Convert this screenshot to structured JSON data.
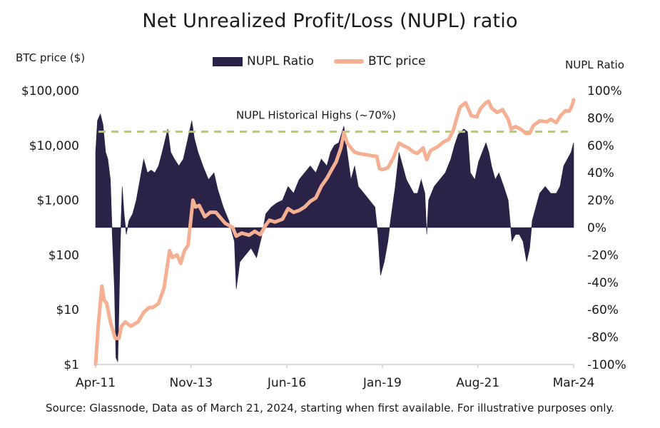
{
  "chart_data": {
    "type": "area+line",
    "title": "Net Unrealized Profit/Loss (NUPL) ratio",
    "legend": {
      "placement": "top-center",
      "entries": [
        {
          "label": "NUPL Ratio",
          "color": "#2b2347",
          "kind": "area"
        },
        {
          "label": "BTC price",
          "color": "#f5b093",
          "kind": "line"
        }
      ]
    },
    "left_axis": {
      "label": "BTC price ($)",
      "scale": "log",
      "range": [
        1,
        100000
      ],
      "ticks": [
        1,
        10,
        100,
        1000,
        10000,
        100000
      ],
      "tick_labels": [
        "$1",
        "$10",
        "$100",
        "$1,000",
        "$10,000",
        "$100,000"
      ]
    },
    "right_axis": {
      "label": "NUPL Ratio",
      "range": [
        -1,
        1
      ],
      "ticks": [
        -1,
        -0.8,
        -0.6,
        -0.4,
        -0.2,
        0,
        0.2,
        0.4,
        0.6,
        0.8,
        1
      ],
      "tick_labels": [
        "-100%",
        "-80%",
        "-60%",
        "-40%",
        "-20%",
        "0%",
        "20%",
        "40%",
        "60%",
        "80%",
        "100%"
      ]
    },
    "x_axis": {
      "range": [
        2011.25,
        2024.17
      ],
      "ticks": [
        2011.25,
        2013.83,
        2016.42,
        2019.0,
        2021.58,
        2024.17
      ],
      "tick_labels": [
        "Apr-11",
        "Nov-13",
        "Jun-16",
        "Jan-19",
        "Aug-21",
        "Mar-24"
      ]
    },
    "reference_line": {
      "value": 0.7,
      "label": "NUPL Historical Highs (~70%)",
      "color": "#b5cc6a",
      "style": "dashed"
    },
    "series": [
      {
        "name": "NUPL Ratio",
        "axis": "right",
        "x_y": [
          [
            2011.25,
            0.55
          ],
          [
            2011.3,
            0.78
          ],
          [
            2011.38,
            0.83
          ],
          [
            2011.45,
            0.75
          ],
          [
            2011.52,
            0.55
          ],
          [
            2011.58,
            0.5
          ],
          [
            2011.65,
            0.35
          ],
          [
            2011.7,
            -0.05
          ],
          [
            2011.76,
            -0.45
          ],
          [
            2011.8,
            -0.95
          ],
          [
            2011.85,
            -0.98
          ],
          [
            2011.88,
            -0.6
          ],
          [
            2011.92,
            -0.1
          ],
          [
            2011.97,
            0.3
          ],
          [
            2012.02,
            0.1
          ],
          [
            2012.08,
            -0.05
          ],
          [
            2012.15,
            0.05
          ],
          [
            2012.25,
            0.1
          ],
          [
            2012.35,
            0.2
          ],
          [
            2012.45,
            0.35
          ],
          [
            2012.55,
            0.5
          ],
          [
            2012.65,
            0.4
          ],
          [
            2012.75,
            0.42
          ],
          [
            2012.85,
            0.4
          ],
          [
            2012.95,
            0.45
          ],
          [
            2013.05,
            0.55
          ],
          [
            2013.2,
            0.72
          ],
          [
            2013.28,
            0.55
          ],
          [
            2013.38,
            0.5
          ],
          [
            2013.5,
            0.45
          ],
          [
            2013.62,
            0.5
          ],
          [
            2013.72,
            0.62
          ],
          [
            2013.85,
            0.78
          ],
          [
            2013.92,
            0.65
          ],
          [
            2014.02,
            0.55
          ],
          [
            2014.15,
            0.45
          ],
          [
            2014.3,
            0.35
          ],
          [
            2014.45,
            0.4
          ],
          [
            2014.55,
            0.28
          ],
          [
            2014.7,
            0.15
          ],
          [
            2014.85,
            0.05
          ],
          [
            2015.0,
            -0.1
          ],
          [
            2015.05,
            -0.45
          ],
          [
            2015.15,
            -0.25
          ],
          [
            2015.3,
            -0.2
          ],
          [
            2015.45,
            -0.15
          ],
          [
            2015.6,
            -0.22
          ],
          [
            2015.75,
            -0.05
          ],
          [
            2015.85,
            0.1
          ],
          [
            2016.0,
            0.15
          ],
          [
            2016.15,
            0.18
          ],
          [
            2016.3,
            0.2
          ],
          [
            2016.45,
            0.3
          ],
          [
            2016.6,
            0.25
          ],
          [
            2016.75,
            0.35
          ],
          [
            2016.9,
            0.4
          ],
          [
            2017.05,
            0.45
          ],
          [
            2017.2,
            0.4
          ],
          [
            2017.35,
            0.5
          ],
          [
            2017.5,
            0.45
          ],
          [
            2017.6,
            0.55
          ],
          [
            2017.7,
            0.6
          ],
          [
            2017.82,
            0.62
          ],
          [
            2017.96,
            0.74
          ],
          [
            2018.05,
            0.55
          ],
          [
            2018.15,
            0.35
          ],
          [
            2018.25,
            0.45
          ],
          [
            2018.35,
            0.3
          ],
          [
            2018.5,
            0.25
          ],
          [
            2018.65,
            0.2
          ],
          [
            2018.8,
            0.15
          ],
          [
            2018.88,
            -0.05
          ],
          [
            2018.95,
            -0.35
          ],
          [
            2019.05,
            -0.25
          ],
          [
            2019.15,
            -0.1
          ],
          [
            2019.22,
            0.05
          ],
          [
            2019.35,
            0.3
          ],
          [
            2019.45,
            0.55
          ],
          [
            2019.55,
            0.45
          ],
          [
            2019.65,
            0.35
          ],
          [
            2019.75,
            0.3
          ],
          [
            2019.85,
            0.25
          ],
          [
            2019.95,
            0.25
          ],
          [
            2020.05,
            0.35
          ],
          [
            2020.15,
            0.25
          ],
          [
            2020.2,
            -0.05
          ],
          [
            2020.25,
            0.2
          ],
          [
            2020.4,
            0.3
          ],
          [
            2020.55,
            0.35
          ],
          [
            2020.7,
            0.4
          ],
          [
            2020.85,
            0.5
          ],
          [
            2020.95,
            0.6
          ],
          [
            2021.05,
            0.68
          ],
          [
            2021.2,
            0.72
          ],
          [
            2021.3,
            0.7
          ],
          [
            2021.38,
            0.4
          ],
          [
            2021.5,
            0.35
          ],
          [
            2021.6,
            0.48
          ],
          [
            2021.7,
            0.55
          ],
          [
            2021.8,
            0.62
          ],
          [
            2021.88,
            0.55
          ],
          [
            2021.95,
            0.45
          ],
          [
            2022.05,
            0.35
          ],
          [
            2022.15,
            0.4
          ],
          [
            2022.28,
            0.3
          ],
          [
            2022.4,
            0.2
          ],
          [
            2022.45,
            0.05
          ],
          [
            2022.5,
            -0.1
          ],
          [
            2022.6,
            -0.05
          ],
          [
            2022.7,
            -0.05
          ],
          [
            2022.8,
            -0.1
          ],
          [
            2022.9,
            -0.25
          ],
          [
            2022.98,
            -0.15
          ],
          [
            2023.05,
            0.05
          ],
          [
            2023.15,
            0.15
          ],
          [
            2023.25,
            0.25
          ],
          [
            2023.4,
            0.3
          ],
          [
            2023.55,
            0.25
          ],
          [
            2023.7,
            0.25
          ],
          [
            2023.8,
            0.3
          ],
          [
            2023.9,
            0.45
          ],
          [
            2024.0,
            0.5
          ],
          [
            2024.1,
            0.55
          ],
          [
            2024.17,
            0.62
          ]
        ]
      },
      {
        "name": "BTC price",
        "axis": "left",
        "x_y": [
          [
            2011.25,
            1
          ],
          [
            2011.32,
            5
          ],
          [
            2011.42,
            27
          ],
          [
            2011.48,
            15
          ],
          [
            2011.55,
            13
          ],
          [
            2011.65,
            6
          ],
          [
            2011.78,
            3
          ],
          [
            2011.88,
            3
          ],
          [
            2011.95,
            5
          ],
          [
            2012.05,
            6
          ],
          [
            2012.2,
            5
          ],
          [
            2012.4,
            6
          ],
          [
            2012.55,
            9
          ],
          [
            2012.7,
            11
          ],
          [
            2012.8,
            11
          ],
          [
            2012.95,
            13
          ],
          [
            2013.1,
            25
          ],
          [
            2013.25,
            120
          ],
          [
            2013.32,
            90
          ],
          [
            2013.45,
            100
          ],
          [
            2013.55,
            70
          ],
          [
            2013.65,
            120
          ],
          [
            2013.75,
            150
          ],
          [
            2013.88,
            1000
          ],
          [
            2013.95,
            750
          ],
          [
            2014.05,
            800
          ],
          [
            2014.2,
            500
          ],
          [
            2014.35,
            600
          ],
          [
            2014.5,
            600
          ],
          [
            2014.6,
            500
          ],
          [
            2014.75,
            380
          ],
          [
            2014.95,
            320
          ],
          [
            2015.05,
            220
          ],
          [
            2015.2,
            250
          ],
          [
            2015.4,
            230
          ],
          [
            2015.55,
            270
          ],
          [
            2015.7,
            235
          ],
          [
            2015.85,
            350
          ],
          [
            2015.95,
            430
          ],
          [
            2016.1,
            400
          ],
          [
            2016.3,
            450
          ],
          [
            2016.45,
            700
          ],
          [
            2016.6,
            600
          ],
          [
            2016.75,
            650
          ],
          [
            2016.9,
            750
          ],
          [
            2017.05,
            950
          ],
          [
            2017.2,
            1100
          ],
          [
            2017.35,
            1800
          ],
          [
            2017.5,
            2500
          ],
          [
            2017.62,
            3500
          ],
          [
            2017.75,
            5000
          ],
          [
            2017.88,
            9000
          ],
          [
            2017.96,
            17000
          ],
          [
            2018.05,
            11000
          ],
          [
            2018.15,
            9000
          ],
          [
            2018.25,
            7500
          ],
          [
            2018.4,
            7000
          ],
          [
            2018.55,
            6800
          ],
          [
            2018.7,
            6500
          ],
          [
            2018.85,
            6300
          ],
          [
            2018.92,
            3800
          ],
          [
            2019.0,
            3600
          ],
          [
            2019.15,
            3900
          ],
          [
            2019.3,
            6000
          ],
          [
            2019.45,
            11000
          ],
          [
            2019.55,
            10000
          ],
          [
            2019.7,
            9000
          ],
          [
            2019.85,
            7500
          ],
          [
            2019.95,
            7200
          ],
          [
            2020.1,
            9000
          ],
          [
            2020.2,
            5500
          ],
          [
            2020.3,
            8000
          ],
          [
            2020.5,
            9500
          ],
          [
            2020.65,
            11500
          ],
          [
            2020.8,
            13000
          ],
          [
            2020.92,
            19000
          ],
          [
            2021.0,
            30000
          ],
          [
            2021.1,
            50000
          ],
          [
            2021.25,
            60000
          ],
          [
            2021.4,
            35000
          ],
          [
            2021.55,
            33000
          ],
          [
            2021.65,
            47000
          ],
          [
            2021.8,
            60000
          ],
          [
            2021.87,
            64000
          ],
          [
            2021.95,
            48000
          ],
          [
            2022.1,
            40000
          ],
          [
            2022.25,
            45000
          ],
          [
            2022.4,
            30000
          ],
          [
            2022.48,
            20000
          ],
          [
            2022.6,
            22000
          ],
          [
            2022.75,
            19500
          ],
          [
            2022.88,
            16500
          ],
          [
            2022.98,
            16600
          ],
          [
            2023.08,
            23000
          ],
          [
            2023.25,
            28000
          ],
          [
            2023.45,
            27000
          ],
          [
            2023.55,
            30000
          ],
          [
            2023.7,
            26000
          ],
          [
            2023.82,
            35000
          ],
          [
            2023.95,
            43000
          ],
          [
            2024.05,
            42000
          ],
          [
            2024.12,
            52000
          ],
          [
            2024.17,
            68000
          ]
        ]
      }
    ],
    "source_note": "Source: Glassnode, Data as of March 21, 2024, starting when first available. For illustrative purposes only."
  }
}
